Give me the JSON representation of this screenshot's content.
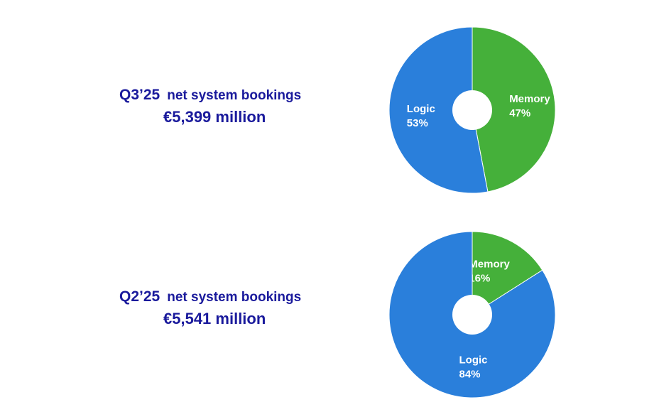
{
  "chart_data": [
    {
      "type": "pie",
      "title": "Q3’25",
      "subtitle": "net system bookings",
      "total": "€5,399 million",
      "categories": [
        "Logic",
        "Memory"
      ],
      "values": [
        53,
        47
      ],
      "value_labels": [
        "53%",
        "47%"
      ],
      "colors": [
        "#2a7fdb",
        "#45b03a"
      ],
      "donut": true
    },
    {
      "type": "pie",
      "title": "Q2’25",
      "subtitle": "net system bookings",
      "total": "€5,541 million",
      "categories": [
        "Logic",
        "Memory"
      ],
      "values": [
        84,
        16
      ],
      "value_labels": [
        "84%",
        "16%"
      ],
      "colors": [
        "#2a7fdb",
        "#45b03a"
      ],
      "donut": true
    }
  ]
}
